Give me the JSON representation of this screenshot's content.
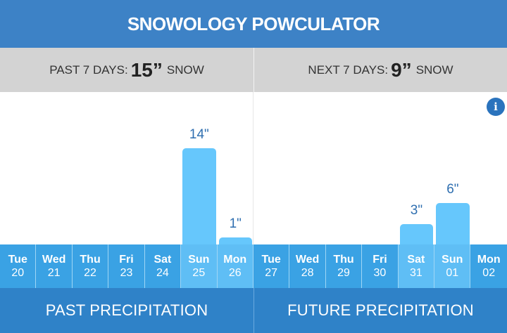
{
  "title": "SNOWOLOGY POWCULATOR",
  "summary": {
    "past": {
      "prefix": "PAST 7 DAYS:",
      "value": "15”",
      "suffix": "SNOW"
    },
    "next": {
      "prefix": "NEXT 7 DAYS:",
      "value": "9”",
      "suffix": "SNOW"
    }
  },
  "info_icon": "info-icon",
  "chart_data": {
    "type": "bar",
    "unit": "inches",
    "days": [
      {
        "name": "Tue",
        "date": "20",
        "value": 0,
        "label": "",
        "period": "past"
      },
      {
        "name": "Wed",
        "date": "21",
        "value": 0,
        "label": "",
        "period": "past"
      },
      {
        "name": "Thu",
        "date": "22",
        "value": 0,
        "label": "",
        "period": "past"
      },
      {
        "name": "Fri",
        "date": "23",
        "value": 0,
        "label": "",
        "period": "past"
      },
      {
        "name": "Sat",
        "date": "24",
        "value": 0,
        "label": "",
        "period": "past"
      },
      {
        "name": "Sun",
        "date": "25",
        "value": 14,
        "label": "14\"",
        "period": "past"
      },
      {
        "name": "Mon",
        "date": "26",
        "value": 1,
        "label": "1\"",
        "period": "past"
      },
      {
        "name": "Tue",
        "date": "27",
        "value": 0,
        "label": "",
        "period": "future"
      },
      {
        "name": "Wed",
        "date": "28",
        "value": 0,
        "label": "",
        "period": "future"
      },
      {
        "name": "Thu",
        "date": "29",
        "value": 0,
        "label": "",
        "period": "future"
      },
      {
        "name": "Fri",
        "date": "30",
        "value": 0,
        "label": "",
        "period": "future"
      },
      {
        "name": "Sat",
        "date": "31",
        "value": 3,
        "label": "3\"",
        "period": "future"
      },
      {
        "name": "Sun",
        "date": "01",
        "value": 6,
        "label": "6\"",
        "period": "future"
      },
      {
        "name": "Mon",
        "date": "02",
        "value": 0,
        "label": "",
        "period": "future"
      }
    ]
  },
  "footer": {
    "past_label": "PAST PRECIPITATION",
    "future_label": "FUTURE PRECIPITATION"
  },
  "colors": {
    "header": "#3d82c6",
    "summary_bg": "#d3d3d3",
    "bar": "#66c7fc",
    "day_cell": "#3aa2e4",
    "day_cell_highlight": "#5fbef5",
    "footer": "#2f82c8",
    "bar_label": "#2f6fb0"
  }
}
